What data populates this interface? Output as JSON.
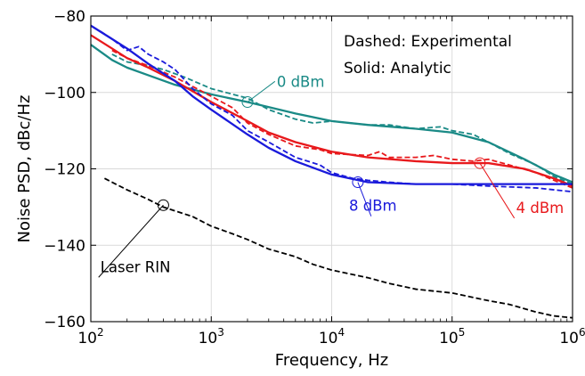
{
  "chart_data": {
    "type": "line",
    "xlabel": "Frequency, Hz",
    "ylabel": "Noise PSD, dBc/Hz",
    "xscale": "log",
    "xlim": [
      100,
      1000000
    ],
    "ylim": [
      -160,
      -80
    ],
    "grid": true,
    "x_ticks": [
      {
        "value": 100,
        "label": "10",
        "exp": "2"
      },
      {
        "value": 1000,
        "label": "10",
        "exp": "3"
      },
      {
        "value": 10000,
        "label": "10",
        "exp": "4"
      },
      {
        "value": 100000,
        "label": "10",
        "exp": "5"
      },
      {
        "value": 1000000,
        "label": "10",
        "exp": "6"
      }
    ],
    "y_ticks": [
      {
        "value": -80,
        "label": "−80"
      },
      {
        "value": -100,
        "label": "−100"
      },
      {
        "value": -120,
        "label": "−120"
      },
      {
        "value": -140,
        "label": "−140"
      },
      {
        "value": -160,
        "label": "−160"
      }
    ],
    "annotations": [
      "Dashed: Experimental",
      "Solid: Analytic"
    ],
    "series": [
      {
        "name": "0 dBm",
        "color": "#1a8a86",
        "analytic": [
          [
            100,
            -87.5
          ],
          [
            150,
            -91.5
          ],
          [
            200,
            -93.5
          ],
          [
            300,
            -95.5
          ],
          [
            500,
            -98
          ],
          [
            1000,
            -100.5
          ],
          [
            2000,
            -102.5
          ],
          [
            5000,
            -105.5
          ],
          [
            10000,
            -107.5
          ],
          [
            20000,
            -108.5
          ],
          [
            50000,
            -109.5
          ],
          [
            100000,
            -110.5
          ],
          [
            200000,
            -113
          ],
          [
            400000,
            -117.5
          ],
          [
            700000,
            -121.5
          ],
          [
            1000000,
            -123.5
          ]
        ],
        "experimental": [
          [
            150,
            -90
          ],
          [
            200,
            -92
          ],
          [
            300,
            -93
          ],
          [
            400,
            -94
          ],
          [
            600,
            -96
          ],
          [
            1000,
            -99
          ],
          [
            2000,
            -101.5
          ],
          [
            3000,
            -104.5
          ],
          [
            5000,
            -107
          ],
          [
            7000,
            -108
          ],
          [
            10000,
            -107.5
          ],
          [
            20000,
            -108.5
          ],
          [
            30000,
            -108.5
          ],
          [
            50000,
            -109.5
          ],
          [
            80000,
            -109
          ],
          [
            100000,
            -110
          ],
          [
            150000,
            -111
          ],
          [
            200000,
            -113
          ],
          [
            300000,
            -116
          ],
          [
            500000,
            -119
          ],
          [
            700000,
            -122
          ],
          [
            1000000,
            -124
          ]
        ],
        "marker": {
          "x": 2000,
          "y": -102.5
        },
        "label_pos": {
          "x": 3500,
          "y": -98.5
        }
      },
      {
        "name": "4 dBm",
        "color": "#e8191c",
        "analytic": [
          [
            100,
            -85
          ],
          [
            150,
            -88.5
          ],
          [
            200,
            -91
          ],
          [
            300,
            -93.5
          ],
          [
            500,
            -97
          ],
          [
            1000,
            -102.5
          ],
          [
            2000,
            -107.5
          ],
          [
            3000,
            -110.5
          ],
          [
            5000,
            -113
          ],
          [
            10000,
            -115.5
          ],
          [
            20000,
            -117
          ],
          [
            50000,
            -118
          ],
          [
            100000,
            -118.5
          ],
          [
            200000,
            -118.5
          ],
          [
            400000,
            -120
          ],
          [
            700000,
            -122.5
          ],
          [
            1000000,
            -124.5
          ]
        ],
        "experimental": [
          [
            150,
            -89
          ],
          [
            200,
            -91
          ],
          [
            300,
            -93
          ],
          [
            500,
            -96
          ],
          [
            1000,
            -101
          ],
          [
            1500,
            -104
          ],
          [
            2000,
            -108
          ],
          [
            3000,
            -111
          ],
          [
            5000,
            -114
          ],
          [
            8000,
            -115
          ],
          [
            10000,
            -116
          ],
          [
            20000,
            -116.5
          ],
          [
            25000,
            -115.5
          ],
          [
            30000,
            -117
          ],
          [
            50000,
            -117
          ],
          [
            70000,
            -116.5
          ],
          [
            100000,
            -117.5
          ],
          [
            150000,
            -118
          ],
          [
            200000,
            -117.5
          ],
          [
            300000,
            -119
          ],
          [
            500000,
            -121
          ],
          [
            700000,
            -123
          ],
          [
            1000000,
            -125
          ]
        ],
        "marker": {
          "x": 170000,
          "y": -118.5
        },
        "label_pos": {
          "x": 340000,
          "y": -131.5
        }
      },
      {
        "name": "8 dBm",
        "color": "#1a1adb",
        "analytic": [
          [
            100,
            -82.5
          ],
          [
            150,
            -86
          ],
          [
            200,
            -88.5
          ],
          [
            300,
            -92.5
          ],
          [
            500,
            -97
          ],
          [
            700,
            -101
          ],
          [
            1000,
            -104.5
          ],
          [
            2000,
            -111
          ],
          [
            3000,
            -114.5
          ],
          [
            5000,
            -118
          ],
          [
            10000,
            -121.5
          ],
          [
            20000,
            -123.5
          ],
          [
            50000,
            -124
          ],
          [
            100000,
            -124
          ],
          [
            200000,
            -124
          ],
          [
            500000,
            -124
          ],
          [
            1000000,
            -124
          ]
        ],
        "experimental": [
          [
            120,
            -84
          ],
          [
            150,
            -86
          ],
          [
            200,
            -89
          ],
          [
            250,
            -88
          ],
          [
            300,
            -90
          ],
          [
            400,
            -92
          ],
          [
            500,
            -94
          ],
          [
            700,
            -99
          ],
          [
            1000,
            -103
          ],
          [
            1500,
            -106
          ],
          [
            2000,
            -110
          ],
          [
            3000,
            -113
          ],
          [
            5000,
            -117
          ],
          [
            8000,
            -119
          ],
          [
            10000,
            -121
          ],
          [
            15000,
            -122.5
          ],
          [
            20000,
            -123
          ],
          [
            30000,
            -123.5
          ],
          [
            50000,
            -124
          ],
          [
            100000,
            -124
          ],
          [
            200000,
            -124.5
          ],
          [
            500000,
            -125
          ],
          [
            1000000,
            -126
          ]
        ],
        "marker": {
          "x": 16500,
          "y": -123.5
        },
        "label_pos": {
          "x": 22000,
          "y": -131
        }
      },
      {
        "name": "Laser RIN",
        "color": "#000000",
        "experimental": [
          [
            130,
            -122.5
          ],
          [
            200,
            -125.5
          ],
          [
            300,
            -128
          ],
          [
            400,
            -130
          ],
          [
            500,
            -131
          ],
          [
            700,
            -132.5
          ],
          [
            1000,
            -135
          ],
          [
            1500,
            -137
          ],
          [
            2000,
            -138.5
          ],
          [
            3000,
            -141
          ],
          [
            5000,
            -143
          ],
          [
            7000,
            -145
          ],
          [
            10000,
            -146.5
          ],
          [
            20000,
            -148.5
          ],
          [
            30000,
            -150
          ],
          [
            50000,
            -151.5
          ],
          [
            100000,
            -152.5
          ],
          [
            200000,
            -154.5
          ],
          [
            300000,
            -155.5
          ],
          [
            500000,
            -157.5
          ],
          [
            700000,
            -158.5
          ],
          [
            1000000,
            -159
          ]
        ],
        "marker": {
          "x": 400,
          "y": -129.5
        },
        "label_pos": {
          "x": 120,
          "y": -147
        }
      }
    ]
  }
}
